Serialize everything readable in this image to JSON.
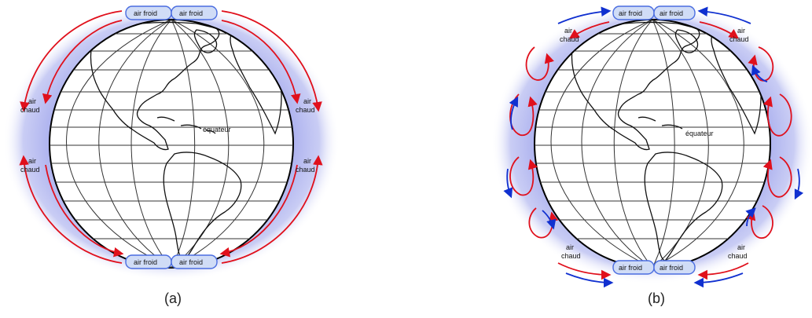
{
  "labels": {
    "cold_air": "air froid",
    "warm_air": "air chaud",
    "warm_air_line1": "air",
    "warm_air_line2": "chaud",
    "equator": "équateur"
  },
  "captions": {
    "a": "(a)",
    "b": "(b)"
  },
  "colors": {
    "halo": "#a9aeee",
    "warm_flow": "#e0101c",
    "cold_flow": "#1030d0",
    "cold_pad": "#d0dcf6",
    "cold_pad_border": "#4a6de0",
    "land_outline": "#111111",
    "grid": "#333333"
  },
  "icons": [
    "red-circulation-arrow",
    "blue-circulation-arrow"
  ]
}
